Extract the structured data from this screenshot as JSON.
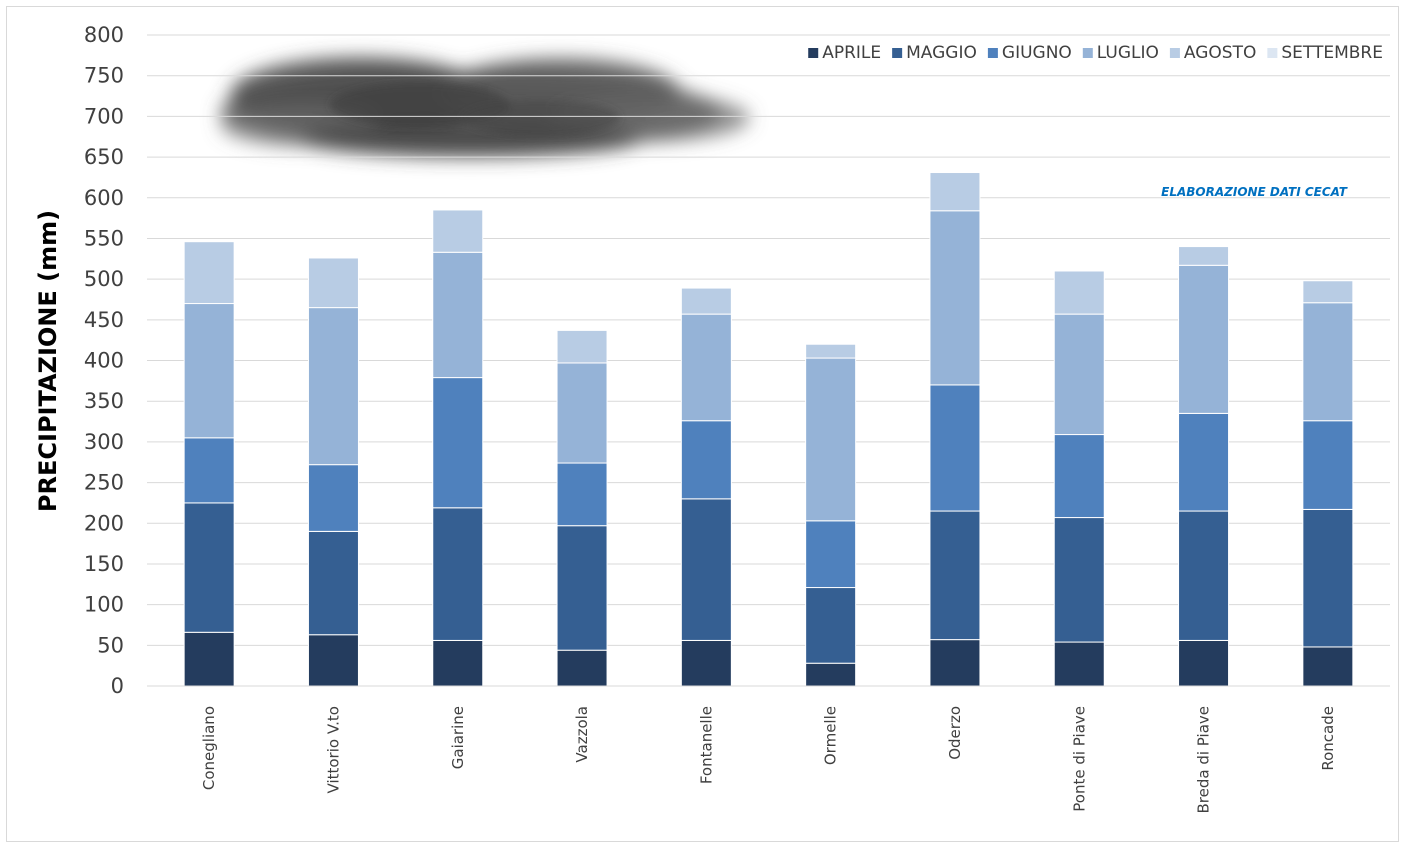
{
  "chart_data": {
    "type": "bar",
    "stacked": true,
    "title": "",
    "xlabel": "",
    "ylabel": "PRECIPITAZIONE (mm)",
    "ylim": [
      0,
      800
    ],
    "yticks": [
      0,
      50,
      100,
      150,
      200,
      250,
      300,
      350,
      400,
      450,
      500,
      550,
      600,
      650,
      700,
      750,
      800
    ],
    "grid": true,
    "legend_position": "top-right",
    "annotation": "ELABORAZIONE DATI CECAT",
    "categories": [
      "Conegliano",
      "Vittorio V.to",
      "Gaiarine",
      "Vazzola",
      "Fontanelle",
      "Ormelle",
      "Oderzo",
      "Ponte di Piave",
      "Breda di Piave",
      "Roncade"
    ],
    "series": [
      {
        "name": "APRILE",
        "color": "#243c5e",
        "values": [
          66,
          63,
          56,
          44,
          56,
          28,
          57,
          54,
          56,
          48
        ]
      },
      {
        "name": "MAGGIO",
        "color": "#355f92",
        "values": [
          159,
          127,
          163,
          153,
          174,
          93,
          158,
          153,
          159,
          169
        ]
      },
      {
        "name": "GIUGNO",
        "color": "#4f81bd",
        "values": [
          80,
          82,
          160,
          77,
          96,
          82,
          155,
          102,
          120,
          109
        ]
      },
      {
        "name": "LUGLIO",
        "color": "#95b3d7",
        "values": [
          165,
          193,
          154,
          123,
          131,
          200,
          214,
          148,
          182,
          145
        ]
      },
      {
        "name": "AGOSTO",
        "color": "#b8cce4",
        "values": [
          76,
          61,
          52,
          40,
          32,
          17,
          47,
          53,
          23,
          27
        ]
      },
      {
        "name": "SETTEMBRE",
        "color": "#dce6f2",
        "values": [
          0,
          0,
          0,
          0,
          0,
          0,
          0,
          0,
          0,
          0
        ]
      }
    ]
  }
}
